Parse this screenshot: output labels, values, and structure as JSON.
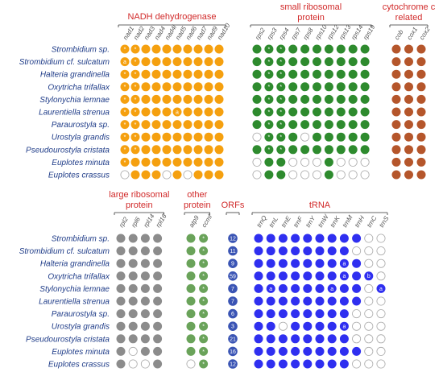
{
  "top_panel": {
    "species": [
      "Strombidium sp.",
      "Strombidium cf. sulcatum",
      "Halteria grandinella",
      "Oxytricha trifallax",
      "Stylonychia lemnae",
      "Laurentiella strenua",
      "Paraurostyla sp.",
      "Urostyla grandis",
      "Pseudourostyla cristata",
      "Euplotes minuta",
      "Euplotes crassus"
    ],
    "groups": [
      {
        "title": [
          "NADH dehydrogenase"
        ],
        "color": "#f5a00f",
        "genes": [
          "nad1",
          "nad2",
          "nad3",
          "nad4",
          "nad4l",
          "nad5",
          "nad6",
          "nad7",
          "nad9",
          "nad10"
        ],
        "rows": [
          [
            "*",
            "*",
            "f",
            "f",
            "f",
            "f",
            "f",
            "f",
            "f",
            "f"
          ],
          [
            "a",
            "*",
            "f",
            "f",
            "f",
            "f",
            "f",
            "f",
            "f",
            "f"
          ],
          [
            "*",
            "*",
            "f",
            "f",
            "f",
            "f",
            "f",
            "f",
            "f",
            "f"
          ],
          [
            "*",
            "*",
            "f",
            "f",
            "f",
            "f",
            "f",
            "f",
            "f",
            "f"
          ],
          [
            "*",
            "*",
            "f",
            "f",
            "f",
            "f",
            "f",
            "f",
            "f",
            "f"
          ],
          [
            "*",
            "*",
            "f",
            "f",
            "f",
            "a",
            "f",
            "f",
            "f",
            "f"
          ],
          [
            "*",
            "*",
            "f",
            "f",
            "f",
            "f",
            "f",
            "f",
            "f",
            "f"
          ],
          [
            "*",
            "*",
            "f",
            "f",
            "f",
            "f",
            "f",
            "f",
            "f",
            "f"
          ],
          [
            "*",
            "*",
            "f",
            "f",
            "f",
            "f",
            "f",
            "f",
            "f",
            "f"
          ],
          [
            "*",
            "f",
            "f",
            "f",
            "f",
            "f",
            "f",
            "f",
            "f",
            "f"
          ],
          [
            "o",
            "f",
            "f",
            "f",
            "o",
            "f",
            "o",
            "f",
            "f",
            "f"
          ]
        ]
      },
      {
        "title": [
          "small ribosomal",
          "protein"
        ],
        "color": "#2e8b2e",
        "genes": [
          "rps2",
          "rps3",
          "rps4",
          "rps7",
          "rps8",
          "rps10",
          "rps12",
          "rps13",
          "rps14",
          "rps19"
        ],
        "rows": [
          [
            "f",
            "*",
            "*",
            "f",
            "f",
            "f",
            "f",
            "f",
            "f",
            "f"
          ],
          [
            "f",
            "*",
            "*",
            "f",
            "f",
            "f",
            "f",
            "f",
            "f",
            "f"
          ],
          [
            "f",
            "*",
            "*",
            "f",
            "f",
            "f",
            "f",
            "f",
            "f",
            "f"
          ],
          [
            "f",
            "*",
            "*",
            "f",
            "f",
            "f",
            "f",
            "f",
            "f",
            "f"
          ],
          [
            "f",
            "*",
            "*",
            "f",
            "f",
            "f",
            "f",
            "f",
            "f",
            "f"
          ],
          [
            "f",
            "*",
            "*",
            "f",
            "f",
            "f",
            "f",
            "f",
            "f",
            "f"
          ],
          [
            "f",
            "*",
            "*",
            "f",
            "f",
            "f",
            "f",
            "f",
            "f",
            "f"
          ],
          [
            "o",
            "*",
            "*",
            "f",
            "o",
            "f",
            "f",
            "f",
            "f",
            "f"
          ],
          [
            "f",
            "*",
            "*",
            "f",
            "f",
            "f",
            "f",
            "f",
            "f",
            "f"
          ],
          [
            "o",
            "f",
            "f",
            "o",
            "o",
            "o",
            "f",
            "o",
            "o",
            "o"
          ],
          [
            "o",
            "f",
            "f",
            "o",
            "o",
            "o",
            "f",
            "o",
            "o",
            "o"
          ]
        ]
      },
      {
        "title": [
          "cytochrome c",
          "related"
        ],
        "color": "#b5562b",
        "genes": [
          "cob",
          "cox1",
          "cox2"
        ],
        "rows": [
          [
            "f",
            "f",
            "f"
          ],
          [
            "f",
            "f",
            "f"
          ],
          [
            "f",
            "f",
            "f"
          ],
          [
            "f",
            "f",
            "f"
          ],
          [
            "f",
            "f",
            "f"
          ],
          [
            "f",
            "f",
            "f"
          ],
          [
            "f",
            "f",
            "f"
          ],
          [
            "f",
            "f",
            "f"
          ],
          [
            "f",
            "f",
            "f"
          ],
          [
            "f",
            "f",
            "f"
          ],
          [
            "f",
            "f",
            "f"
          ]
        ]
      }
    ]
  },
  "bottom_panel": {
    "species": [
      "Strombidium sp.",
      "Strombidium cf. sulcatum",
      "Halteria grandinella",
      "Oxytricha trifallax",
      "Stylonychia lemnae",
      "Laurentiella strenua",
      "Paraurostyla sp.",
      "Urostyla grandis",
      "Pseudourostyla cristata",
      "Euplotes minuta",
      "Euplotes crassus"
    ],
    "groups": [
      {
        "title": [
          "large ribosomal",
          "protein"
        ],
        "color": "#8c8c8c",
        "genes": [
          "rpl2",
          "rpl6",
          "rpl14",
          "rpl16"
        ],
        "rows": [
          [
            "f",
            "f",
            "f",
            "f"
          ],
          [
            "f",
            "f",
            "f",
            "f"
          ],
          [
            "f",
            "f",
            "f",
            "f"
          ],
          [
            "f",
            "f",
            "f",
            "f"
          ],
          [
            "f",
            "f",
            "f",
            "f"
          ],
          [
            "f",
            "f",
            "f",
            "f"
          ],
          [
            "f",
            "f",
            "f",
            "f"
          ],
          [
            "f",
            "f",
            "f",
            "f"
          ],
          [
            "f",
            "f",
            "f",
            "f"
          ],
          [
            "f",
            "o",
            "f",
            "f"
          ],
          [
            "f",
            "o",
            "o",
            "f"
          ]
        ]
      },
      {
        "title": [
          "other",
          "protein"
        ],
        "color": "#6aa35a",
        "genes": [
          "atp9",
          "ccmf"
        ],
        "rows": [
          [
            "f",
            "*"
          ],
          [
            "f",
            "*"
          ],
          [
            "f",
            "*"
          ],
          [
            "f",
            "*"
          ],
          [
            "f",
            "*"
          ],
          [
            "f",
            "*"
          ],
          [
            "f",
            "*"
          ],
          [
            "f",
            "*"
          ],
          [
            "f",
            "*"
          ],
          [
            "f",
            "*"
          ],
          [
            "o",
            "*"
          ]
        ]
      },
      {
        "title": [
          "ORFs"
        ],
        "color": "#3a54b4",
        "genes": [],
        "orfs": [
          "12",
          "11",
          "9",
          "59",
          "7",
          "7",
          "6",
          "3",
          "21",
          "16",
          "12"
        ]
      },
      {
        "title": [
          "tRNA"
        ],
        "color": "#2f2ff0",
        "genes": [
          "trnQ",
          "trnL",
          "trnE",
          "trnF",
          "trnY",
          "trnW",
          "trnK",
          "trnM",
          "trnH",
          "trnC",
          "trnS"
        ],
        "rows": [
          [
            "f",
            "f",
            "f",
            "f",
            "f",
            "f",
            "f",
            "f",
            "f",
            "o",
            "o"
          ],
          [
            "f",
            "f",
            "f",
            "f",
            "f",
            "f",
            "f",
            "f",
            "o",
            "o",
            "o"
          ],
          [
            "f",
            "f",
            "f",
            "f",
            "f",
            "f",
            "f",
            "a",
            "f",
            "o",
            "o"
          ],
          [
            "f",
            "f",
            "f",
            "f",
            "f",
            "f",
            "f",
            "a",
            "f",
            "b",
            "o"
          ],
          [
            "f",
            "a",
            "f",
            "f",
            "f",
            "f",
            "a",
            "f",
            "f",
            "o",
            "a"
          ],
          [
            "f",
            "f",
            "f",
            "f",
            "f",
            "f",
            "f",
            "f",
            "f",
            "o",
            "o"
          ],
          [
            "f",
            "f",
            "f",
            "f",
            "f",
            "f",
            "f",
            "f",
            "o",
            "o",
            "o"
          ],
          [
            "f",
            "f",
            "o",
            "f",
            "f",
            "f",
            "f",
            "a",
            "o",
            "o",
            "o"
          ],
          [
            "f",
            "f",
            "f",
            "f",
            "f",
            "f",
            "f",
            "f",
            "o",
            "o",
            "o"
          ],
          [
            "f",
            "f",
            "f",
            "f",
            "f",
            "f",
            "f",
            "f",
            "f",
            "o",
            "o"
          ],
          [
            "f",
            "f",
            "f",
            "f",
            "f",
            "f",
            "f",
            "f",
            "o",
            "o",
            "o"
          ]
        ]
      }
    ]
  }
}
